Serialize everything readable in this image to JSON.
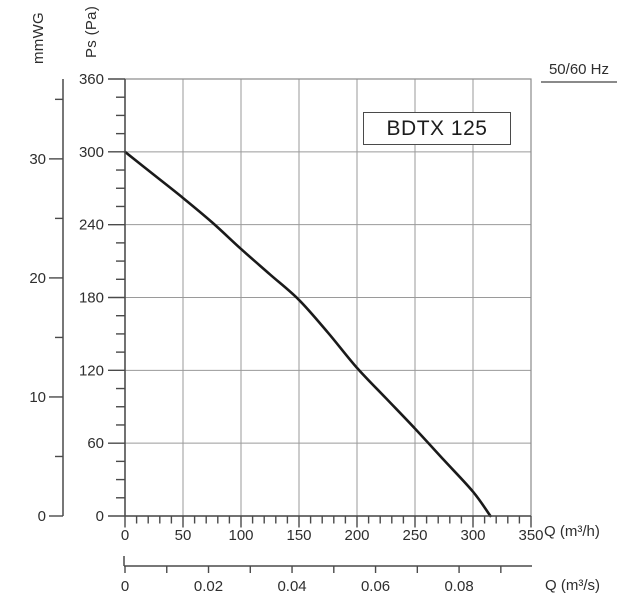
{
  "header": {
    "frequency_label": "50/60 Hz",
    "model_label": "BDTX 125"
  },
  "axes": {
    "y_primary": {
      "title": "Ps (Pa)",
      "min": 0,
      "max": 360,
      "major_step": 60,
      "minor_step": 15,
      "tick_labels": [
        "0",
        "60",
        "120",
        "180",
        "240",
        "300",
        "360"
      ]
    },
    "y_secondary": {
      "title": "mmWG",
      "min": 0,
      "max": 35,
      "major_step": 10,
      "minor_step": 5,
      "tick_labels": [
        "0",
        "10",
        "20",
        "30"
      ],
      "pa_per_unit": 9.80665
    },
    "x_primary": {
      "title": "Q (m³/h)",
      "min": 0,
      "max": 350,
      "major_step": 50,
      "minor_step": 10,
      "tick_labels": [
        "0",
        "50",
        "100",
        "150",
        "200",
        "250",
        "300",
        "350"
      ]
    },
    "x_secondary": {
      "title": "Q (m³/s)",
      "min": 0,
      "max": 0.0985,
      "tick_step": 0.01,
      "label_step": 0.02,
      "tick_labels": [
        "0",
        "0.02",
        "0.04",
        "0.06",
        "0.08"
      ],
      "m3h_per_unit": 3600
    }
  },
  "chart_data": {
    "type": "line",
    "title": "BDTX 125 fan performance curve",
    "xlabel": "Q (m³/h)",
    "ylabel": "Ps (Pa)",
    "xlim": [
      0,
      350
    ],
    "ylim": [
      0,
      360
    ],
    "grid": true,
    "legend": "none",
    "series": [
      {
        "name": "BDTX 125",
        "x": [
          0,
          25,
          50,
          75,
          100,
          125,
          150,
          175,
          200,
          225,
          250,
          275,
          300,
          315
        ],
        "y": [
          300,
          281,
          262,
          242,
          220,
          199,
          178,
          151,
          122,
          97,
          72,
          46,
          20,
          0
        ]
      }
    ]
  },
  "colors": {
    "curve": "#1a1a1a",
    "grid": "#9a9a9a",
    "frame": "#8a8a8a",
    "axis": "#4a4a4a",
    "text": "#2e2e2e"
  }
}
